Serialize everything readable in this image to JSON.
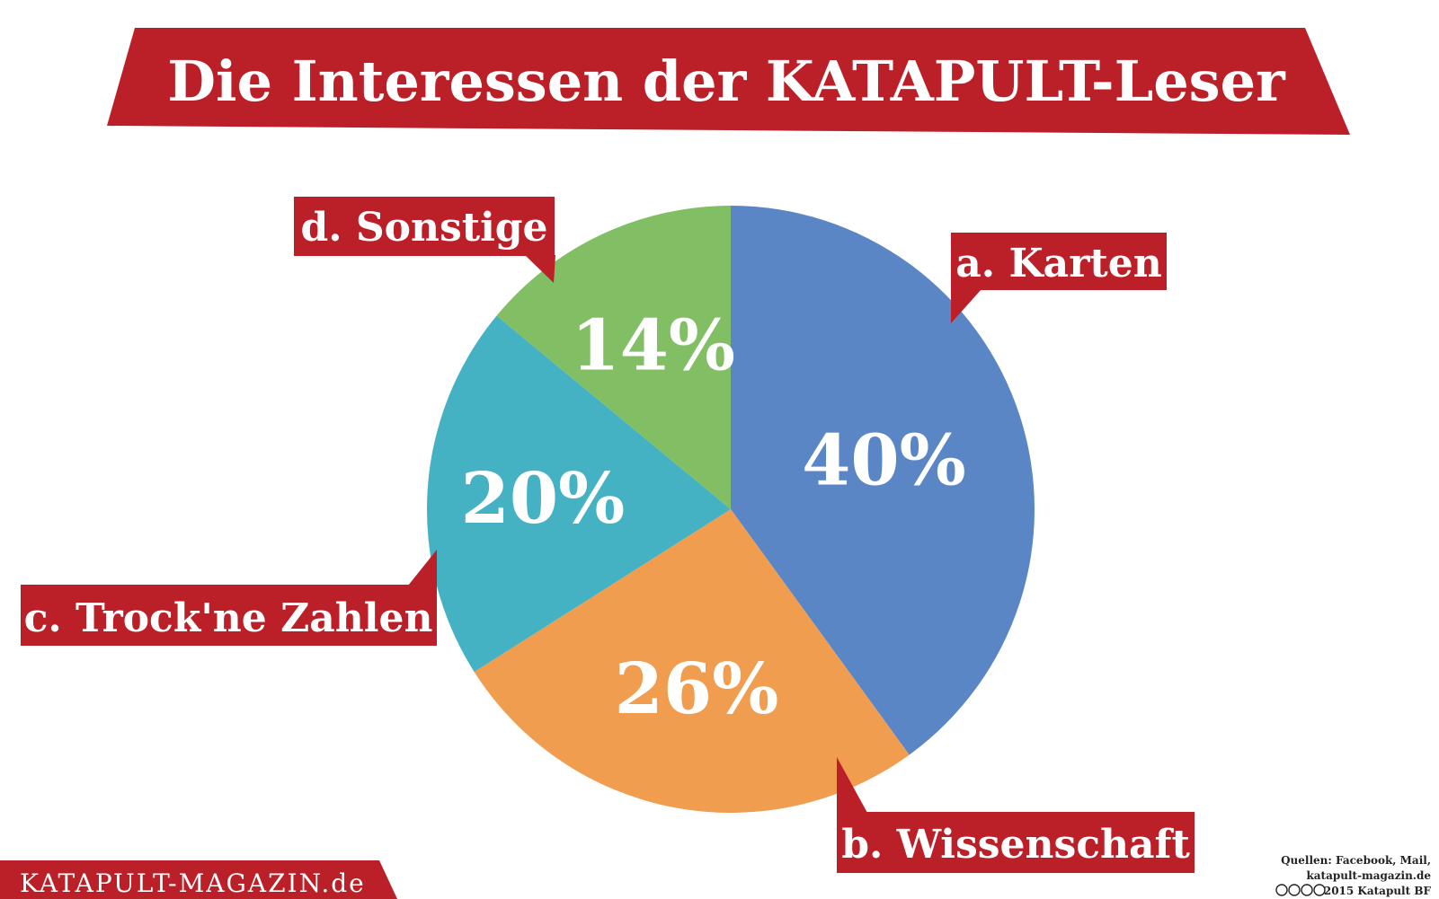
{
  "title": "Die Interessen der KATAPULT-Leser",
  "brand": "KATAPULT-MAGAZIN.de",
  "source": {
    "line1": "Quellen: Facebook, Mail,",
    "line2": "katapult-magazin.de",
    "line3": "2015 Katapult BF"
  },
  "colors": {
    "brand_red": "#BB1F27",
    "karten": "#5B86C6",
    "wissenschaft": "#F09D4F",
    "zahlen": "#45B2C4",
    "sonstige": "#82BF64"
  },
  "chart_data": {
    "type": "pie",
    "title": "Die Interessen der KATAPULT-Leser",
    "start_angle_deg": 0,
    "direction": "clockwise",
    "legend": "callouts",
    "slices": [
      {
        "label": "a. Karten",
        "value": 40,
        "value_label": "40%",
        "color": "#5B86C6"
      },
      {
        "label": "b. Wissenschaft",
        "value": 26,
        "value_label": "26%",
        "color": "#F09D4F"
      },
      {
        "label": "c. Trock'ne Zahlen",
        "value": 20,
        "value_label": "20%",
        "color": "#45B2C4"
      },
      {
        "label": "d. Sonstige",
        "value": 14,
        "value_label": "14%",
        "color": "#82BF64"
      }
    ]
  }
}
